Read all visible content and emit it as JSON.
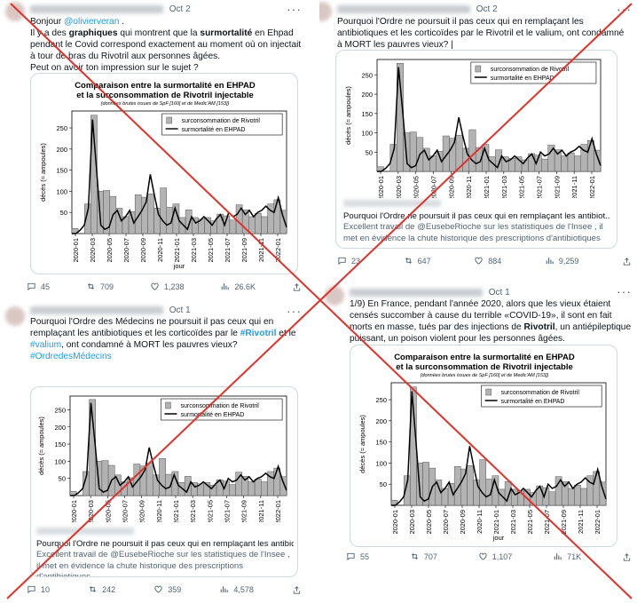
{
  "tweets": [
    {
      "time": "Oct 2",
      "text_parts": [
        {
          "t": "Bonjour ",
          "s": "plain"
        },
        {
          "t": "@olivierveran",
          "s": "mention"
        },
        {
          "t": " .\nIl y a des ",
          "s": "plain"
        },
        {
          "t": "graphiques",
          "s": "bold"
        },
        {
          "t": " qui montrent que la ",
          "s": "plain"
        },
        {
          "t": "surmortalité",
          "s": "bold"
        },
        {
          "t": " en Ehpad pendant le Covid correspond exactement au moment où on injectait à tour de bras du Rivotril aux personnes âgées.\nPeut on avoir ton impression sur le sujet ?",
          "s": "plain"
        }
      ],
      "reply_count": "45",
      "retweet_count": "709",
      "like_count": "1,238",
      "view_count": "26.6K"
    },
    {
      "time": "Oct 2",
      "text_parts": [
        {
          "t": "Pourquoi l'Ordre ne poursuit il pas ceux qui en remplaçant les antibiotiques et les corticoïdes par le Rivotril et le valium, ont condamné à MORT les pauvres vieux? | ",
          "s": "plain"
        }
      ],
      "link_title": "Pourquoi l'Ordre ne poursuit il pas ceux qui en remplaçant les antibiot...",
      "link_desc": "Excellent travail de @EusebeRioche sur les statistiques de l'Insee , il met en évidence la chute historique des prescriptions d'antibiotiques ...",
      "reply_count": "23",
      "retweet_count": "647",
      "like_count": "884",
      "view_count": "9,259"
    },
    {
      "time": "Oct 1",
      "text_parts": [
        {
          "t": "Pourquoi l'Ordre des Médecins ne poursuit il pas ceux qui en remplaçant les antibiotiques et les corticoïdes  par le ",
          "s": "plain"
        },
        {
          "t": "#Rivotril",
          "s": "hashbold"
        },
        {
          "t": " et le ",
          "s": "plain"
        },
        {
          "t": "#valium",
          "s": "hash"
        },
        {
          "t": ", ont condamné à MORT les pauvres vieux?\n",
          "s": "plain"
        },
        {
          "t": "#OrdredesMédecins",
          "s": "hash"
        }
      ],
      "link_title": "Pourquoi l'Ordre ne poursuit il pas ceux qui en remplaçant les antibiot...",
      "link_desc": "Excellent travail de @EusebeRioche sur les statistiques de l'Insee , il met en évidence la chute historique des prescriptions d'antibiotiques ...",
      "reply_count": "10",
      "retweet_count": "242",
      "like_count": "359",
      "view_count": "4,578"
    },
    {
      "time": "Oct 1",
      "text_parts": [
        {
          "t": "1/9) En France, pendant l'année 2020, alors que les vieux étaient censés succomber à cause du terrible «COVID-19», il sont en fait morts en masse, tués par des injections de ",
          "s": "plain"
        },
        {
          "t": "Rivotril",
          "s": "bold"
        },
        {
          "t": ", un antiépileptique puissant, un poison violent pour les personnes âgées.",
          "s": "plain"
        }
      ],
      "reply_count": "55",
      "retweet_count": "707",
      "like_count": "1,107",
      "view_count": "71K"
    }
  ],
  "chart": {
    "title_line1": "Comparaison entre la surmortalité en EHPAD",
    "title_line2": "et la surconsommation de Rivotril injectable",
    "subtitle": "(données brutes issues de SpF [160] et de Medic'AM [153])",
    "legend_bar": "surconsommation de Rivotril",
    "legend_line": "surmortalité en EHPAD",
    "ylabel": "décès (≈ ampoules)",
    "xlabel": "jour"
  },
  "chart_data": {
    "type": "bar",
    "title": "Comparaison entre la surmortalité en EHPAD et la surconsommation de Rivotril injectable",
    "xlabel": "jour",
    "ylabel": "décès (≈ ampoules)",
    "ylim": [
      0,
      290
    ],
    "yticks": [
      50,
      100,
      150,
      200,
      250
    ],
    "xticks": [
      "2020-01",
      "2020-03",
      "2020-05",
      "2020-07",
      "2020-09",
      "2020-11",
      "2021-01",
      "2021-03",
      "2021-05",
      "2021-07",
      "2021-09",
      "2021-11",
      "2022-01"
    ],
    "series": [
      {
        "name": "surconsommation de Rivotril",
        "type": "bar",
        "values": [
          12,
          0,
          70,
          280,
          100,
          102,
          88,
          60,
          40,
          52,
          92,
          86,
          94,
          60,
          108,
          62,
          70,
          38,
          56,
          38,
          34,
          38,
          30,
          46,
          42,
          32,
          68,
          56,
          40,
          48,
          40,
          70,
          80,
          55
        ]
      },
      {
        "name": "surmortalité en EHPAD",
        "type": "line",
        "values": [
          0,
          0,
          8,
          20,
          60,
          270,
          150,
          20,
          10,
          15,
          45,
          55,
          30,
          40,
          55,
          25,
          40,
          55,
          75,
          140,
          90,
          45,
          30,
          20,
          25,
          60,
          30,
          20,
          10,
          40,
          25,
          30,
          40,
          30,
          20,
          35,
          45,
          20,
          50,
          40,
          45,
          60,
          45,
          55,
          40,
          50,
          55,
          65,
          55,
          50,
          85,
          45,
          15
        ]
      }
    ]
  }
}
